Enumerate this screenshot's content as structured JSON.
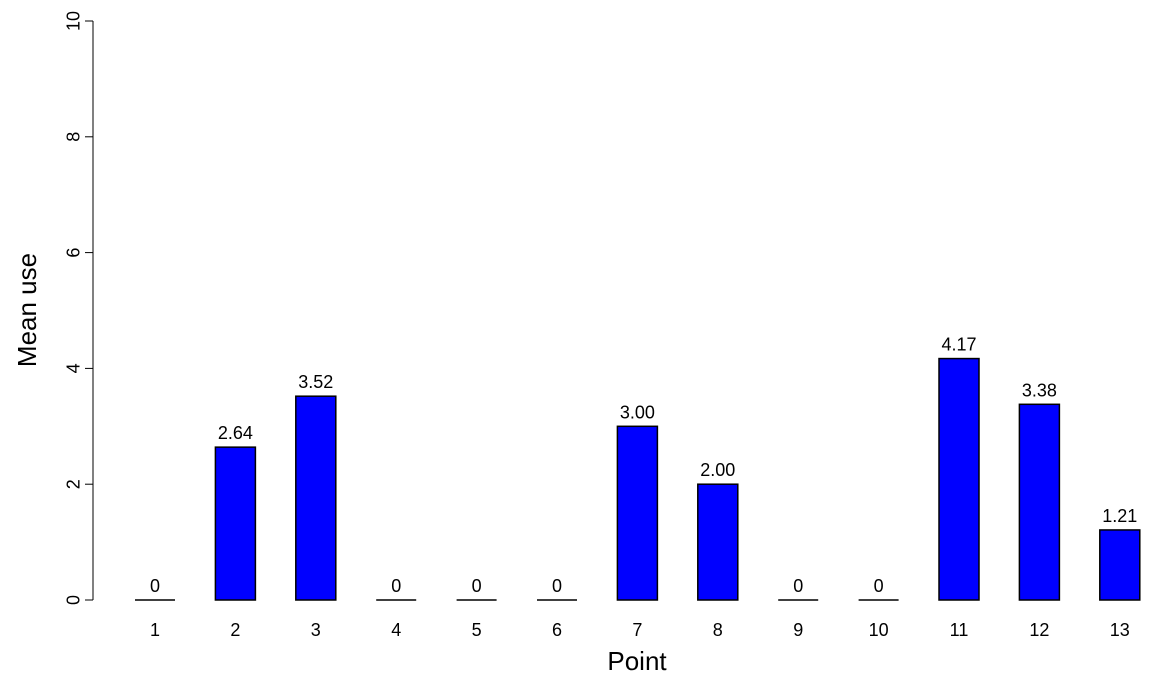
{
  "chart_data": {
    "type": "bar",
    "title": "",
    "xlabel": "Point",
    "ylabel": "Mean use",
    "categories": [
      "1",
      "2",
      "3",
      "4",
      "5",
      "6",
      "7",
      "8",
      "9",
      "10",
      "11",
      "12",
      "13"
    ],
    "values": [
      0,
      2.64,
      3.52,
      0,
      0,
      0,
      3.0,
      2.0,
      0,
      0,
      4.17,
      3.38,
      1.21
    ],
    "data_labels": [
      "0",
      "2.64",
      "3.52",
      "0",
      "0",
      "0",
      "3.00",
      "2.00",
      "0",
      "0",
      "4.17",
      "3.38",
      "1.21"
    ],
    "ylim": [
      0,
      10
    ],
    "yticks": [
      0,
      2,
      4,
      6,
      8,
      10
    ],
    "grid": false,
    "bar_color": "#0000ff",
    "bar_edge_color": "#000000"
  }
}
